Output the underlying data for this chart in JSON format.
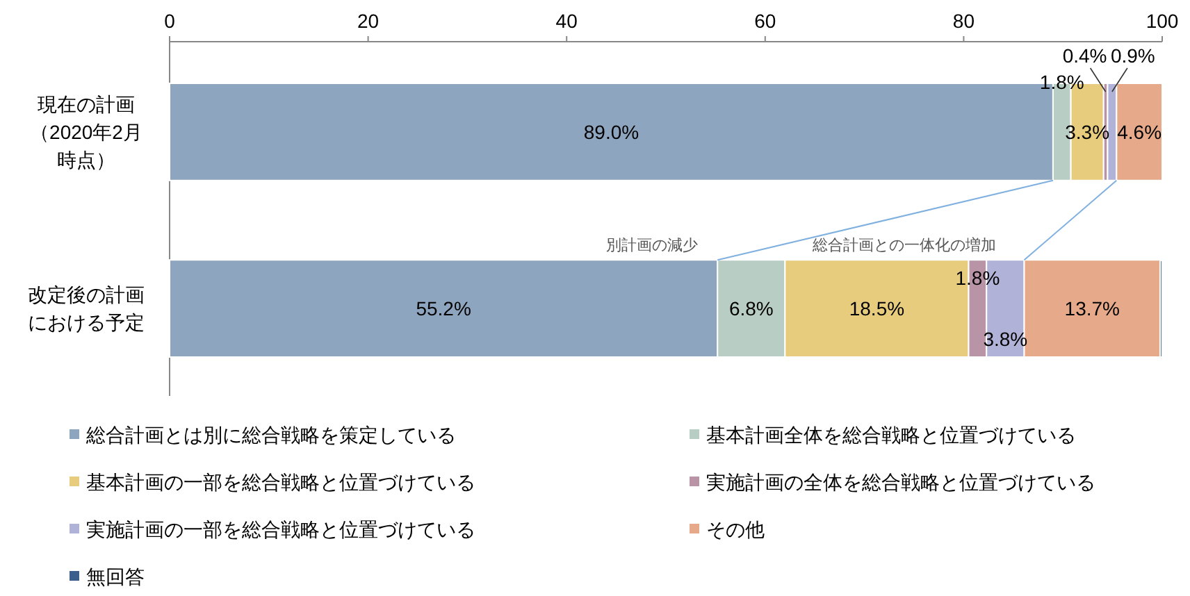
{
  "chart_data": {
    "type": "bar",
    "orientation": "horizontal",
    "stacked": true,
    "categories": [
      "現在の計画（2020年2月時点）",
      "改定後の計画における予定"
    ],
    "series": [
      {
        "name": "総合計画とは別に総合戦略を策定している",
        "color": "#8ea5c0",
        "values": [
          89.0,
          55.2
        ],
        "value_labels": [
          "89.0%",
          "55.2%"
        ]
      },
      {
        "name": "基本計画全体を総合戦略と位置づけている",
        "color": "#b8cdc4",
        "values": [
          1.8,
          6.8
        ],
        "value_labels": [
          "1.8%",
          "6.8%"
        ]
      },
      {
        "name": "基本計画の一部を総合戦略と位置づけている",
        "color": "#e8cc7e",
        "values": [
          3.3,
          18.5
        ],
        "value_labels": [
          "3.3%",
          "18.5%"
        ]
      },
      {
        "name": "実施計画の全体を総合戦略と位置づけている",
        "color": "#b894a6",
        "values": [
          0.4,
          1.8
        ],
        "value_labels": [
          "0.4%",
          "1.8%"
        ]
      },
      {
        "name": "実施計画の一部を総合戦略と位置づけている",
        "color": "#b0b2d8",
        "values": [
          0.9,
          3.8
        ],
        "value_labels": [
          "0.9%",
          "3.8%"
        ]
      },
      {
        "name": "その他",
        "color": "#e6aa8a",
        "values": [
          4.6,
          13.7
        ],
        "value_labels": [
          "4.6%",
          "13.7%"
        ]
      },
      {
        "name": "無回答",
        "color": "#3a5f8c",
        "values": [
          0,
          0.2
        ],
        "value_labels": [
          null,
          null
        ]
      }
    ],
    "xlim": [
      0,
      100
    ],
    "xticks": [
      0,
      20,
      40,
      60,
      80,
      100
    ],
    "grid": false,
    "legend": "bottom",
    "annotations": [
      "別計画の減少",
      "総合計画との一体化の増加"
    ]
  }
}
